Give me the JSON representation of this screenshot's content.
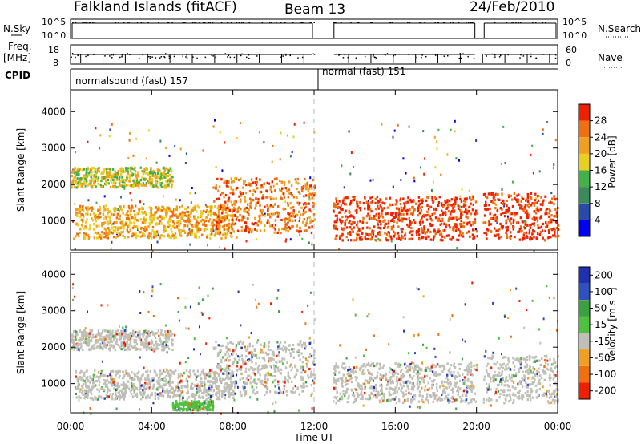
{
  "header": {
    "station": "Falkland Islands (fitACF)",
    "beam": "Beam 13",
    "date": "24/Feb/2010"
  },
  "status_panels": {
    "nsky_label": "N.Sky",
    "nsky_ticks": [
      "10^5",
      "10^0"
    ],
    "nsearch_label": "N.Search",
    "nsearch_ticks": [
      "10^5",
      "10^0"
    ],
    "freq_label": "Freq.",
    "freq_unit": "[MHz]",
    "freq_ticks": [
      "18",
      "8"
    ],
    "nave_label": "Nave",
    "nave_ticks": [
      "60",
      "0"
    ],
    "cpid_label": "CPID",
    "cpid_modes": [
      "normalsound (fast) 157",
      "normal (fast) 151"
    ]
  },
  "colors": {
    "power_scale": [
      "#0000ee",
      "#2a4aa8",
      "#3a8a5a",
      "#44b04a",
      "#e8d020",
      "#f0a020",
      "#f07010",
      "#ee2000"
    ],
    "velocity_scale": [
      "#2030b0",
      "#3050c0",
      "#3aa040",
      "#50c040",
      "#c0c0b8",
      "#f0a020",
      "#f07010",
      "#ee2000"
    ],
    "ground_scatter": "#c0c0b8"
  },
  "chart_data": [
    {
      "type": "heatmap",
      "name": "power",
      "ylabel": "Slant Range [km]",
      "yticks": [
        1000,
        2000,
        3000,
        4000
      ],
      "ylim": [
        200,
        4600
      ],
      "xticks": [
        "00:00",
        "04:00",
        "08:00",
        "12:00",
        "16:00",
        "20:00",
        "00:00"
      ],
      "xlim_hours": [
        0,
        24
      ],
      "colorbar_label": "Power [dB]",
      "colorbar_ticks": [
        "4",
        "8",
        "12",
        "16",
        "20",
        "24",
        "28"
      ],
      "data_gaps_hours": [
        [
          12.0,
          12.9
        ],
        [
          20.0,
          20.3
        ]
      ],
      "regions": [
        {
          "t0": 0.0,
          "t1": 5.0,
          "r0": 1950,
          "r1": 2500,
          "level": 5
        },
        {
          "t0": 0.2,
          "t1": 8.0,
          "r0": 550,
          "r1": 1450,
          "level": 6
        },
        {
          "t0": 7.0,
          "t1": 12.0,
          "r0": 700,
          "r1": 2200,
          "level": 7
        },
        {
          "t0": 12.9,
          "t1": 20.0,
          "r0": 500,
          "r1": 1700,
          "level": 8
        },
        {
          "t0": 20.3,
          "t1": 24.0,
          "r0": 500,
          "r1": 1800,
          "level": 8
        }
      ]
    },
    {
      "type": "heatmap",
      "name": "velocity",
      "ylabel": "Slant Range [km]",
      "yticks": [
        1000,
        2000,
        3000,
        4000
      ],
      "ylim": [
        200,
        4600
      ],
      "xticks": [
        "00:00",
        "04:00",
        "08:00",
        "12:00",
        "16:00",
        "20:00",
        "00:00"
      ],
      "xlim_hours": [
        0,
        24
      ],
      "xlabel": "Time UT",
      "colorbar_label": "Velocity [m s⁻¹]",
      "colorbar_ticks": [
        "200",
        "100",
        "50",
        "15",
        "-15",
        "-50",
        "-100",
        "-200"
      ],
      "data_gaps_hours": [
        [
          12.0,
          12.9
        ],
        [
          20.0,
          20.3
        ]
      ],
      "regions": [
        {
          "t0": 0.0,
          "t1": 5.0,
          "r0": 1950,
          "r1": 2500,
          "level": 4
        },
        {
          "t0": 0.2,
          "t1": 8.0,
          "r0": 600,
          "r1": 1400,
          "level": 4
        },
        {
          "t0": 7.0,
          "t1": 12.0,
          "r0": 700,
          "r1": 2200,
          "level": 4
        },
        {
          "t0": 12.9,
          "t1": 20.0,
          "r0": 500,
          "r1": 1600,
          "level": 4
        },
        {
          "t0": 20.3,
          "t1": 24.0,
          "r0": 500,
          "r1": 1800,
          "level": 4
        },
        {
          "t0": 5.0,
          "t1": 7.0,
          "r0": 300,
          "r1": 550,
          "level": 3
        }
      ]
    }
  ]
}
